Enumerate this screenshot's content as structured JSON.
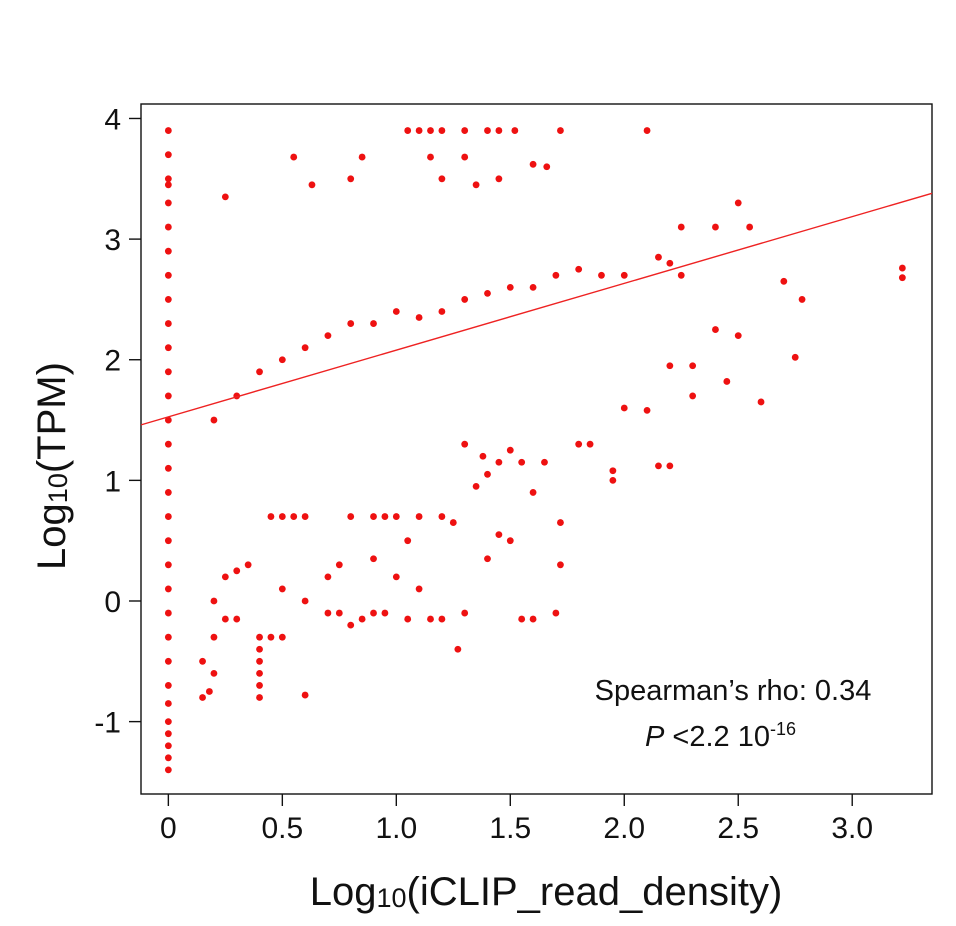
{
  "chart_data": {
    "type": "scatter",
    "xlabel_base": "Log",
    "xlabel_sub": "10",
    "xlabel_rest": "(iCLIP_read_density)",
    "ylabel_base": "Log",
    "ylabel_sub": "10",
    "ylabel_rest": "(TPM)",
    "xlim": [
      -0.12,
      3.35
    ],
    "ylim": [
      -1.6,
      4.12
    ],
    "x_ticks": [
      0,
      0.5,
      1.0,
      1.5,
      2.0,
      2.5,
      3.0
    ],
    "x_tick_labels": [
      "0",
      "0.5",
      "1.0",
      "1.5",
      "2.0",
      "2.5",
      "3.0"
    ],
    "y_ticks": [
      4,
      3,
      2,
      1,
      0,
      -1
    ],
    "y_tick_labels": [
      "4",
      "3",
      "2",
      "1",
      "0",
      "-1"
    ],
    "point_color": "#ee1111",
    "line_color": "#ee2222",
    "annotation": {
      "line1": "Spearman’s rho: 0.34",
      "p_label": "P",
      "p_text": " <2.2 10",
      "p_exp": "-16"
    },
    "fit_line": {
      "x": [
        -0.12,
        3.35
      ],
      "y": [
        1.46,
        3.38
      ]
    },
    "points": [
      [
        0,
        3.9
      ],
      [
        0,
        3.7
      ],
      [
        0,
        3.5
      ],
      [
        0,
        3.45
      ],
      [
        0,
        3.3
      ],
      [
        0,
        3.1
      ],
      [
        0,
        2.9
      ],
      [
        0,
        2.7
      ],
      [
        0,
        2.5
      ],
      [
        0,
        2.3
      ],
      [
        0,
        2.1
      ],
      [
        0,
        1.9
      ],
      [
        0,
        1.7
      ],
      [
        0,
        1.5
      ],
      [
        0,
        1.3
      ],
      [
        0,
        1.1
      ],
      [
        0,
        0.9
      ],
      [
        0,
        0.7
      ],
      [
        0,
        0.5
      ],
      [
        0,
        0.3
      ],
      [
        0,
        0.1
      ],
      [
        0,
        -0.1
      ],
      [
        0,
        -0.3
      ],
      [
        0,
        -0.5
      ],
      [
        0,
        -0.7
      ],
      [
        0,
        -0.85
      ],
      [
        0,
        -1.0
      ],
      [
        0,
        -1.1
      ],
      [
        0,
        -1.2
      ],
      [
        0,
        -1.3
      ],
      [
        0,
        -1.4
      ],
      [
        1.05,
        3.9
      ],
      [
        1.1,
        3.9
      ],
      [
        1.15,
        3.9
      ],
      [
        1.2,
        3.9
      ],
      [
        1.3,
        3.9
      ],
      [
        1.4,
        3.9
      ],
      [
        1.45,
        3.9
      ],
      [
        1.52,
        3.9
      ],
      [
        1.72,
        3.9
      ],
      [
        2.1,
        3.9
      ],
      [
        0.55,
        3.68
      ],
      [
        0.85,
        3.68
      ],
      [
        1.15,
        3.68
      ],
      [
        1.3,
        3.68
      ],
      [
        1.6,
        3.62
      ],
      [
        1.66,
        3.6
      ],
      [
        0.25,
        3.35
      ],
      [
        0.63,
        3.45
      ],
      [
        0.8,
        3.5
      ],
      [
        1.2,
        3.5
      ],
      [
        1.35,
        3.45
      ],
      [
        1.45,
        3.5
      ],
      [
        2.25,
        3.1
      ],
      [
        2.4,
        3.1
      ],
      [
        2.5,
        3.3
      ],
      [
        2.55,
        3.1
      ],
      [
        2.15,
        2.85
      ],
      [
        2.2,
        2.8
      ],
      [
        2.25,
        2.7
      ],
      [
        2.7,
        2.65
      ],
      [
        2.78,
        2.5
      ],
      [
        3.22,
        2.76
      ],
      [
        3.22,
        2.68
      ],
      [
        2.5,
        2.2
      ],
      [
        2.4,
        2.25
      ],
      [
        2.45,
        1.82
      ],
      [
        2.6,
        1.65
      ],
      [
        2.75,
        2.02
      ],
      [
        2.3,
        1.95
      ],
      [
        2.2,
        1.95
      ],
      [
        2.3,
        1.7
      ],
      [
        2.0,
        1.6
      ],
      [
        2.1,
        1.58
      ],
      [
        2.15,
        1.12
      ],
      [
        2.2,
        1.12
      ],
      [
        1.95,
        1.08
      ],
      [
        1.95,
        1.0
      ],
      [
        1.8,
        1.3
      ],
      [
        1.85,
        1.3
      ],
      [
        1.72,
        0.65
      ],
      [
        1.72,
        0.3
      ],
      [
        1.6,
        0.9
      ],
      [
        1.65,
        1.15
      ],
      [
        1.55,
        1.15
      ],
      [
        1.5,
        0.5
      ],
      [
        1.45,
        0.55
      ],
      [
        1.4,
        0.35
      ],
      [
        1.3,
        -0.1
      ],
      [
        1.27,
        -0.4
      ],
      [
        1.2,
        -0.15
      ],
      [
        1.15,
        -0.15
      ],
      [
        1.05,
        -0.15
      ],
      [
        0.95,
        -0.1
      ],
      [
        0.9,
        -0.1
      ],
      [
        0.8,
        -0.2
      ],
      [
        0.85,
        -0.15
      ],
      [
        0.75,
        -0.1
      ],
      [
        0.7,
        -0.1
      ],
      [
        1.55,
        -0.15
      ],
      [
        1.6,
        -0.15
      ],
      [
        1.7,
        -0.1
      ],
      [
        0.4,
        -0.3
      ],
      [
        0.4,
        -0.4
      ],
      [
        0.4,
        -0.5
      ],
      [
        0.4,
        -0.6
      ],
      [
        0.4,
        -0.7
      ],
      [
        0.4,
        -0.8
      ],
      [
        0.6,
        -0.78
      ],
      [
        0.3,
        -0.15
      ],
      [
        0.25,
        -0.15
      ],
      [
        0.2,
        -0.3
      ],
      [
        0.15,
        -0.5
      ],
      [
        0.18,
        -0.75
      ],
      [
        0.2,
        -0.6
      ],
      [
        0.15,
        -0.8
      ],
      [
        0.5,
        -0.3
      ],
      [
        0.45,
        -0.3
      ],
      [
        0.8,
        0.7
      ],
      [
        0.9,
        0.7
      ],
      [
        0.95,
        0.7
      ],
      [
        1.0,
        0.7
      ],
      [
        1.1,
        0.7
      ],
      [
        1.2,
        0.7
      ],
      [
        1.25,
        0.65
      ],
      [
        1.05,
        0.5
      ],
      [
        0.6,
        0.7
      ],
      [
        0.55,
        0.7
      ],
      [
        0.5,
        0.7
      ],
      [
        0.45,
        0.7
      ],
      [
        0.7,
        0.2
      ],
      [
        0.75,
        0.3
      ],
      [
        0.6,
        0.0
      ],
      [
        0.5,
        0.1
      ],
      [
        0.35,
        0.3
      ],
      [
        0.3,
        0.25
      ],
      [
        0.25,
        0.2
      ],
      [
        0.2,
        0.0
      ],
      [
        1.1,
        0.1
      ],
      [
        1.0,
        0.2
      ],
      [
        0.9,
        0.35
      ],
      [
        1.35,
        0.95
      ],
      [
        1.4,
        1.05
      ],
      [
        1.45,
        1.15
      ],
      [
        1.38,
        1.2
      ],
      [
        1.3,
        1.3
      ],
      [
        1.5,
        1.25
      ],
      [
        0.2,
        1.5
      ],
      [
        0.3,
        1.7
      ],
      [
        0.4,
        1.9
      ],
      [
        0.5,
        2.0
      ],
      [
        0.6,
        2.1
      ],
      [
        0.7,
        2.2
      ],
      [
        0.8,
        2.3
      ],
      [
        0.9,
        2.3
      ],
      [
        1.0,
        2.4
      ],
      [
        1.1,
        2.35
      ],
      [
        1.2,
        2.4
      ],
      [
        1.3,
        2.5
      ],
      [
        1.4,
        2.55
      ],
      [
        1.5,
        2.6
      ],
      [
        1.6,
        2.6
      ],
      [
        1.7,
        2.7
      ],
      [
        1.8,
        2.75
      ],
      [
        1.9,
        2.7
      ],
      [
        2.0,
        2.7
      ]
    ]
  }
}
